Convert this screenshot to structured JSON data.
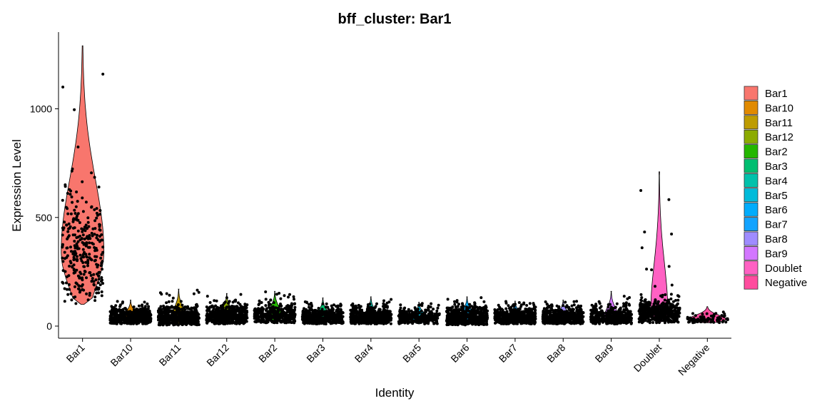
{
  "chart_data": {
    "type": "violin",
    "title": "bff_cluster: Bar1",
    "xlabel": "Identity",
    "ylabel": "Expression Level",
    "ylim": [
      -70,
      1300
    ],
    "yticks": [
      0,
      500,
      1000
    ],
    "ytick_labels": [
      "0",
      "500",
      "1000"
    ],
    "categories": [
      "Bar1",
      "Bar10",
      "Bar11",
      "Bar12",
      "Bar2",
      "Bar3",
      "Bar4",
      "Bar5",
      "Bar6",
      "Bar7",
      "Bar8",
      "Bar9",
      "Doublet",
      "Negative"
    ],
    "colors": [
      "#F8766D",
      "#E18A00",
      "#BE9C00",
      "#8CAB00",
      "#24B700",
      "#00BE70",
      "#00C1AB",
      "#00BBDA",
      "#00ACFC",
      "#12A3FF",
      "#9F8CFF",
      "#D376FF",
      "#FF61C3",
      "#FF4C9E"
    ],
    "distributions": [
      {
        "name": "Bar1",
        "min": 100,
        "max": 1290,
        "median": 340,
        "n_points": 300
      },
      {
        "name": "Bar10",
        "min": 10,
        "max": 120,
        "median": 40,
        "n_points": 550
      },
      {
        "name": "Bar11",
        "min": 5,
        "max": 170,
        "median": 40,
        "n_points": 550
      },
      {
        "name": "Bar12",
        "min": 10,
        "max": 150,
        "median": 45,
        "n_points": 550
      },
      {
        "name": "Bar2",
        "min": 15,
        "max": 160,
        "median": 50,
        "n_points": 400
      },
      {
        "name": "Bar3",
        "min": 10,
        "max": 130,
        "median": 40,
        "n_points": 500
      },
      {
        "name": "Bar4",
        "min": 10,
        "max": 135,
        "median": 40,
        "n_points": 550
      },
      {
        "name": "Bar5",
        "min": 10,
        "max": 110,
        "median": 40,
        "n_points": 300
      },
      {
        "name": "Bar6",
        "min": 5,
        "max": 135,
        "median": 40,
        "n_points": 550
      },
      {
        "name": "Bar7",
        "min": 10,
        "max": 115,
        "median": 40,
        "n_points": 550
      },
      {
        "name": "Bar8",
        "min": 10,
        "max": 120,
        "median": 40,
        "n_points": 550
      },
      {
        "name": "Bar9",
        "min": 10,
        "max": 160,
        "median": 40,
        "n_points": 450
      },
      {
        "name": "Doublet",
        "min": 15,
        "max": 710,
        "median": 60,
        "n_points": 500
      },
      {
        "name": "Negative",
        "min": 15,
        "max": 90,
        "median": 30,
        "n_points": 90
      }
    ],
    "legend": {
      "position": "right",
      "entries": [
        "Bar1",
        "Bar10",
        "Bar11",
        "Bar12",
        "Bar2",
        "Bar3",
        "Bar4",
        "Bar5",
        "Bar6",
        "Bar7",
        "Bar8",
        "Bar9",
        "Doublet",
        "Negative"
      ]
    },
    "grid": false
  }
}
